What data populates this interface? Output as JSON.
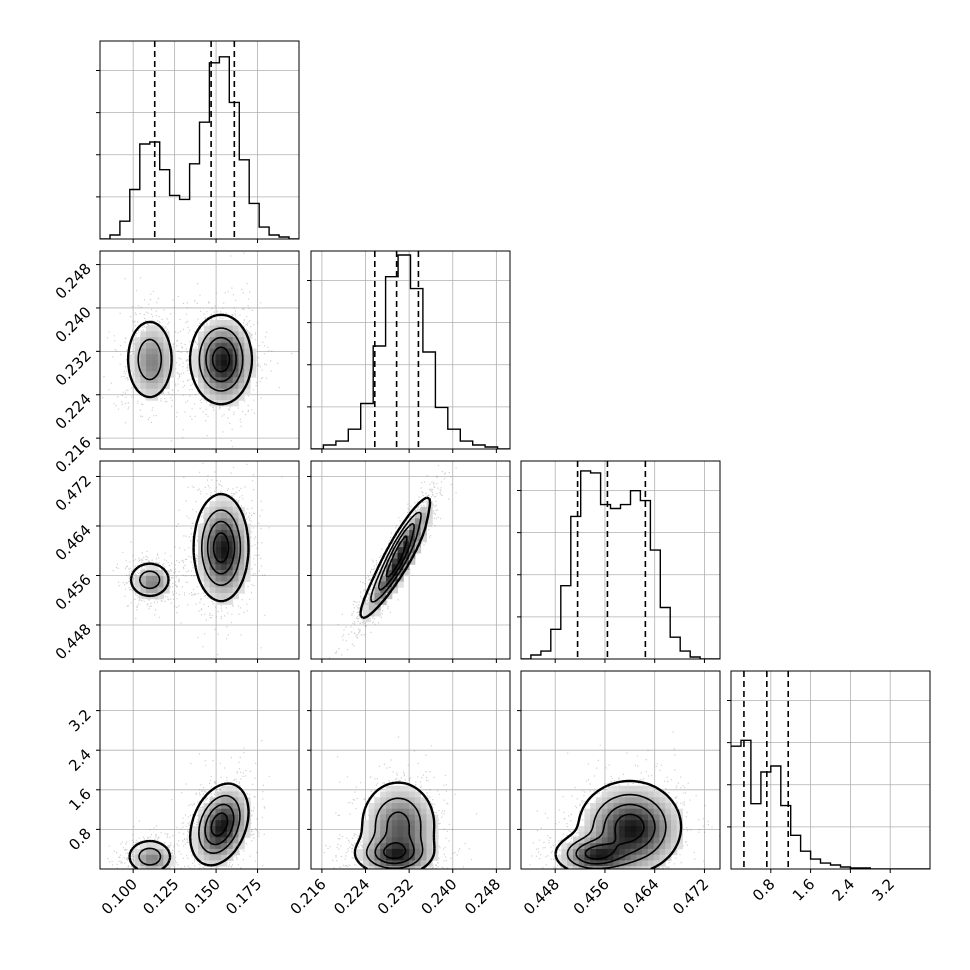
{
  "chart_data": {
    "type": "corner",
    "parameters": 4,
    "grid": true,
    "colors": {
      "line": "#000000",
      "grid": "#b0b0b0",
      "points": "#777777",
      "density": "#000000"
    },
    "ranges": [
      [
        0.08,
        0.2
      ],
      [
        0.214,
        0.2505
      ],
      [
        0.4425,
        0.4745
      ],
      [
        0.0,
        4.0
      ]
    ],
    "ticks": [
      [
        "0.100",
        "0.125",
        "0.150",
        "0.175"
      ],
      [
        "0.216",
        "0.224",
        "0.232",
        "0.240",
        "0.248"
      ],
      [
        "0.448",
        "0.456",
        "0.464",
        "0.472"
      ],
      [
        "0.8",
        "1.6",
        "2.4",
        "3.2"
      ]
    ],
    "quantiles": [
      [
        0.113,
        0.147,
        0.161
      ],
      [
        0.2257,
        0.2297,
        0.2337
      ],
      [
        0.4516,
        0.4564,
        0.4625
      ],
      [
        0.26,
        0.72,
        1.15
      ]
    ],
    "histograms": [
      {
        "bins": [
          0.08,
          0.2
        ],
        "values": [
          0.0,
          0.02,
          0.09,
          0.25,
          0.48,
          0.49,
          0.35,
          0.22,
          0.2,
          0.38,
          0.59,
          0.89,
          0.92,
          0.69,
          0.4,
          0.18,
          0.06,
          0.02,
          0.01,
          0.0
        ]
      },
      {
        "bins": [
          0.214,
          0.2505
        ],
        "values": [
          0.0,
          0.02,
          0.04,
          0.1,
          0.23,
          0.52,
          0.87,
          0.98,
          0.81,
          0.49,
          0.21,
          0.1,
          0.04,
          0.02,
          0.01,
          0.0
        ]
      },
      {
        "bins": [
          0.4425,
          0.4745
        ],
        "values": [
          0.0,
          0.02,
          0.04,
          0.15,
          0.37,
          0.72,
          0.95,
          0.94,
          0.78,
          0.76,
          0.78,
          0.85,
          0.8,
          0.55,
          0.26,
          0.11,
          0.04,
          0.01,
          0.0,
          0.0
        ]
      },
      {
        "bins": [
          0.0,
          4.0
        ],
        "values": [
          0.62,
          0.65,
          0.33,
          0.49,
          0.52,
          0.32,
          0.17,
          0.09,
          0.05,
          0.03,
          0.02,
          0.01,
          0.005,
          0.005,
          0.0,
          0.0,
          0.0,
          0.0,
          0.0,
          0.0
        ]
      }
    ],
    "modes": [
      [
        [
          0.11,
          0.2305,
          0.4553,
          0.25
        ],
        [
          0.152,
          0.2305,
          0.459,
          0.9
        ]
      ],
      [
        [
          0.11,
          0.2305,
          0.4553,
          0.25
        ],
        [
          0.152,
          0.2305,
          0.459,
          0.9
        ]
      ]
    ]
  }
}
